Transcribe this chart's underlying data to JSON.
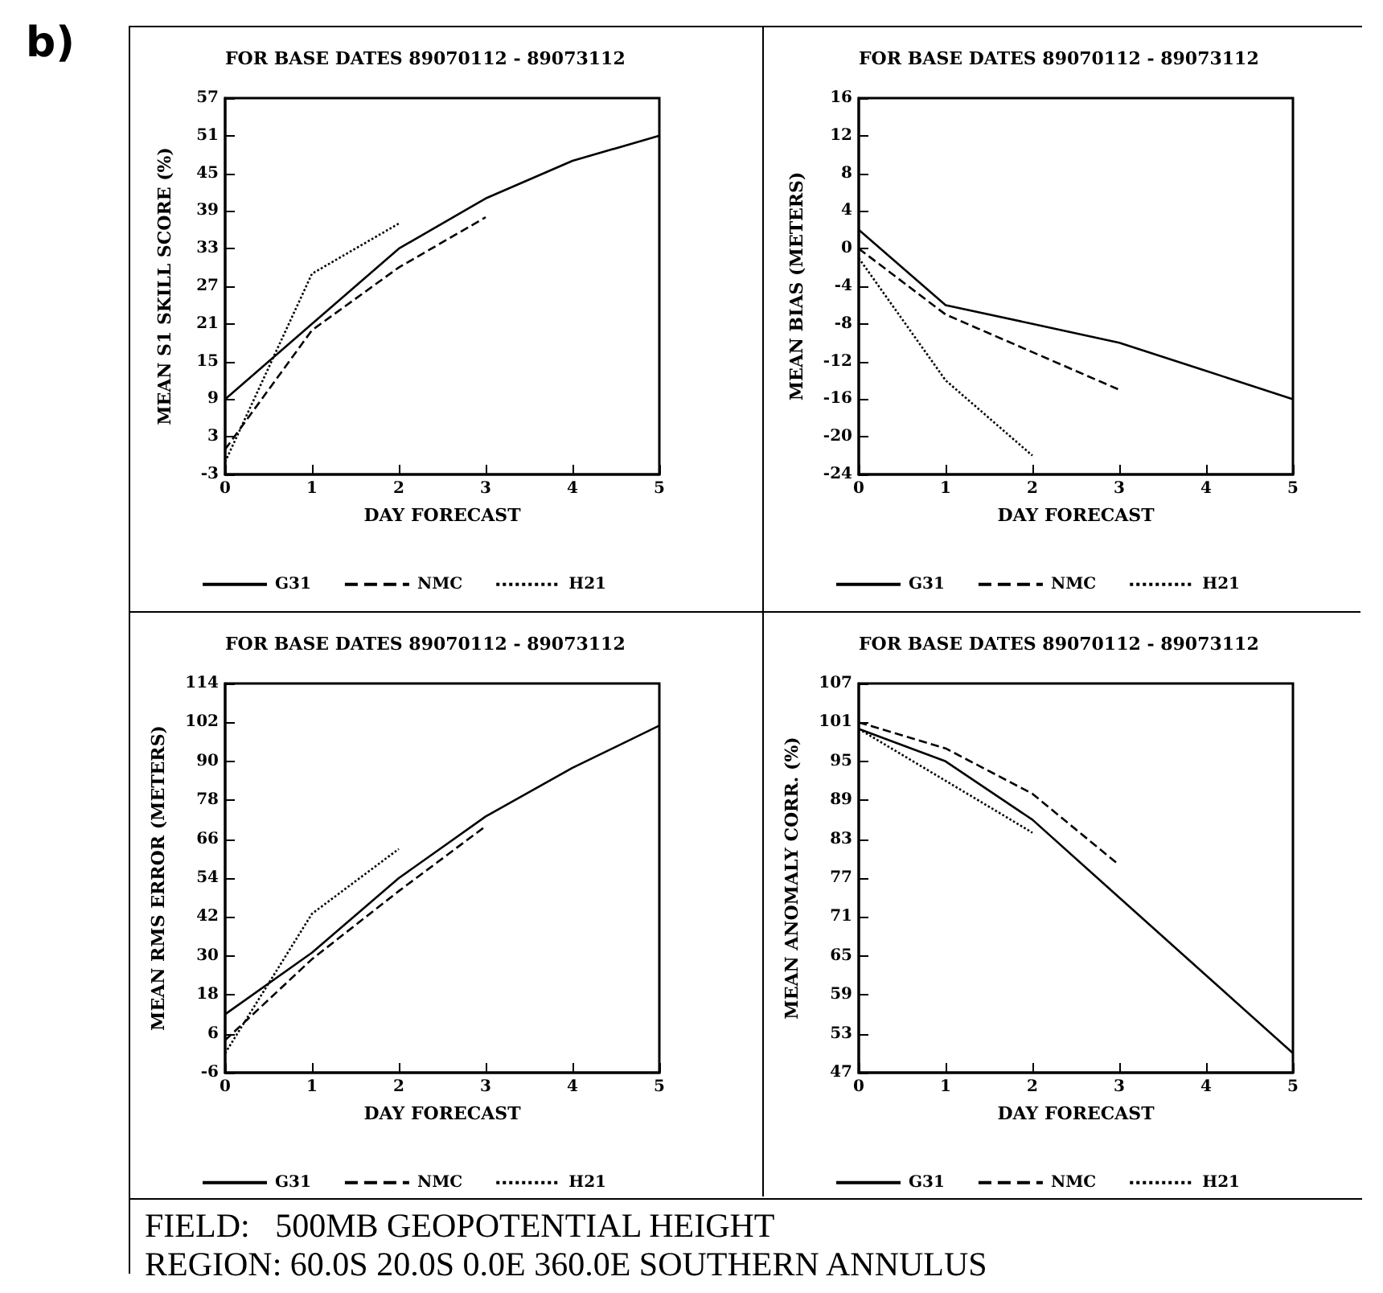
{
  "chart_data": [
    {
      "type": "line",
      "title": "FOR BASE DATES 89070112 - 89073112",
      "xlabel": "DAY FORECAST",
      "ylabel": "MEAN S1 SKILL SCORE (%)",
      "x": [
        0,
        1,
        2,
        3,
        4,
        5
      ],
      "xlim": [
        0,
        5
      ],
      "xticks": [
        0,
        1,
        2,
        3,
        4,
        5
      ],
      "ylim": [
        -3,
        57
      ],
      "yticks": [
        -3,
        3,
        9,
        15,
        21,
        27,
        33,
        39,
        45,
        51,
        57
      ],
      "grid": false,
      "legend": "bottom",
      "marker": "none",
      "series": [
        {
          "name": "G31",
          "color": "#000000",
          "line_style": "solid",
          "values": [
            9,
            21,
            33,
            41,
            47,
            51
          ]
        },
        {
          "name": "NMC",
          "color": "#000000",
          "line_style": "dashed",
          "values": [
            1,
            20,
            30,
            38,
            null,
            null
          ]
        },
        {
          "name": "H21",
          "color": "#000000",
          "line_style": "dotted",
          "values": [
            -1,
            29,
            37,
            null,
            null,
            null
          ]
        }
      ]
    },
    {
      "type": "line",
      "title": "FOR BASE DATES 89070112 - 89073112",
      "xlabel": "DAY FORECAST",
      "ylabel": "MEAN BIAS (METERS)",
      "x": [
        0,
        1,
        2,
        3,
        4,
        5
      ],
      "xlim": [
        0,
        5
      ],
      "xticks": [
        0,
        1,
        2,
        3,
        4,
        5
      ],
      "ylim": [
        -24,
        16
      ],
      "yticks": [
        -24,
        -20,
        -16,
        -12,
        -8,
        -4,
        0,
        4,
        8,
        12,
        16
      ],
      "grid": false,
      "legend": "bottom",
      "marker": "none",
      "series": [
        {
          "name": "G31",
          "color": "#000000",
          "line_style": "solid",
          "values": [
            2,
            -6,
            -8,
            -10,
            -13,
            -16
          ]
        },
        {
          "name": "NMC",
          "color": "#000000",
          "line_style": "dashed",
          "values": [
            0,
            -7,
            -11,
            -15,
            null,
            null
          ]
        },
        {
          "name": "H21",
          "color": "#000000",
          "line_style": "dotted",
          "values": [
            -1,
            -14,
            -22,
            null,
            null,
            null
          ]
        }
      ]
    },
    {
      "type": "line",
      "title": "FOR BASE DATES 89070112 - 89073112",
      "xlabel": "DAY FORECAST",
      "ylabel": "MEAN RMS ERROR (METERS)",
      "x": [
        0,
        1,
        2,
        3,
        4,
        5
      ],
      "xlim": [
        0,
        5
      ],
      "xticks": [
        0,
        1,
        2,
        3,
        4,
        5
      ],
      "ylim": [
        -6,
        114
      ],
      "yticks": [
        -6,
        6,
        18,
        30,
        42,
        54,
        66,
        78,
        90,
        102,
        114
      ],
      "grid": false,
      "legend": "bottom",
      "marker": "none",
      "series": [
        {
          "name": "G31",
          "color": "#000000",
          "line_style": "solid",
          "values": [
            12,
            31,
            54,
            73,
            88,
            101
          ]
        },
        {
          "name": "NMC",
          "color": "#000000",
          "line_style": "dashed",
          "values": [
            4,
            29,
            50,
            70,
            null,
            null
          ]
        },
        {
          "name": "H21",
          "color": "#000000",
          "line_style": "dotted",
          "values": [
            0,
            43,
            63,
            null,
            null,
            null
          ]
        }
      ]
    },
    {
      "type": "line",
      "title": "FOR BASE DATES 89070112 - 89073112",
      "xlabel": "DAY FORECAST",
      "ylabel": "MEAN ANOMALY CORR. (%)",
      "x": [
        0,
        1,
        2,
        3,
        4,
        5
      ],
      "xlim": [
        0,
        5
      ],
      "xticks": [
        0,
        1,
        2,
        3,
        4,
        5
      ],
      "ylim": [
        47,
        107
      ],
      "yticks": [
        47,
        53,
        59,
        65,
        71,
        77,
        83,
        89,
        95,
        101,
        107
      ],
      "grid": false,
      "legend": "bottom",
      "marker": "none",
      "series": [
        {
          "name": "G31",
          "color": "#000000",
          "line_style": "solid",
          "values": [
            100,
            95,
            86,
            74,
            62,
            50
          ]
        },
        {
          "name": "NMC",
          "color": "#000000",
          "line_style": "dashed",
          "values": [
            101,
            97,
            90,
            79,
            null,
            null
          ]
        },
        {
          "name": "H21",
          "color": "#000000",
          "line_style": "dotted",
          "values": [
            100,
            92,
            84,
            null,
            null,
            null
          ]
        }
      ]
    },
    {
      "type": "other",
      "annotations": [
        "b)",
        "FIELD:   500MB GEOPOTENTIAL HEIGHT",
        "REGION: 60.0S 20.0S 0.0E 360.0E SOUTHERN ANNULUS"
      ]
    }
  ]
}
